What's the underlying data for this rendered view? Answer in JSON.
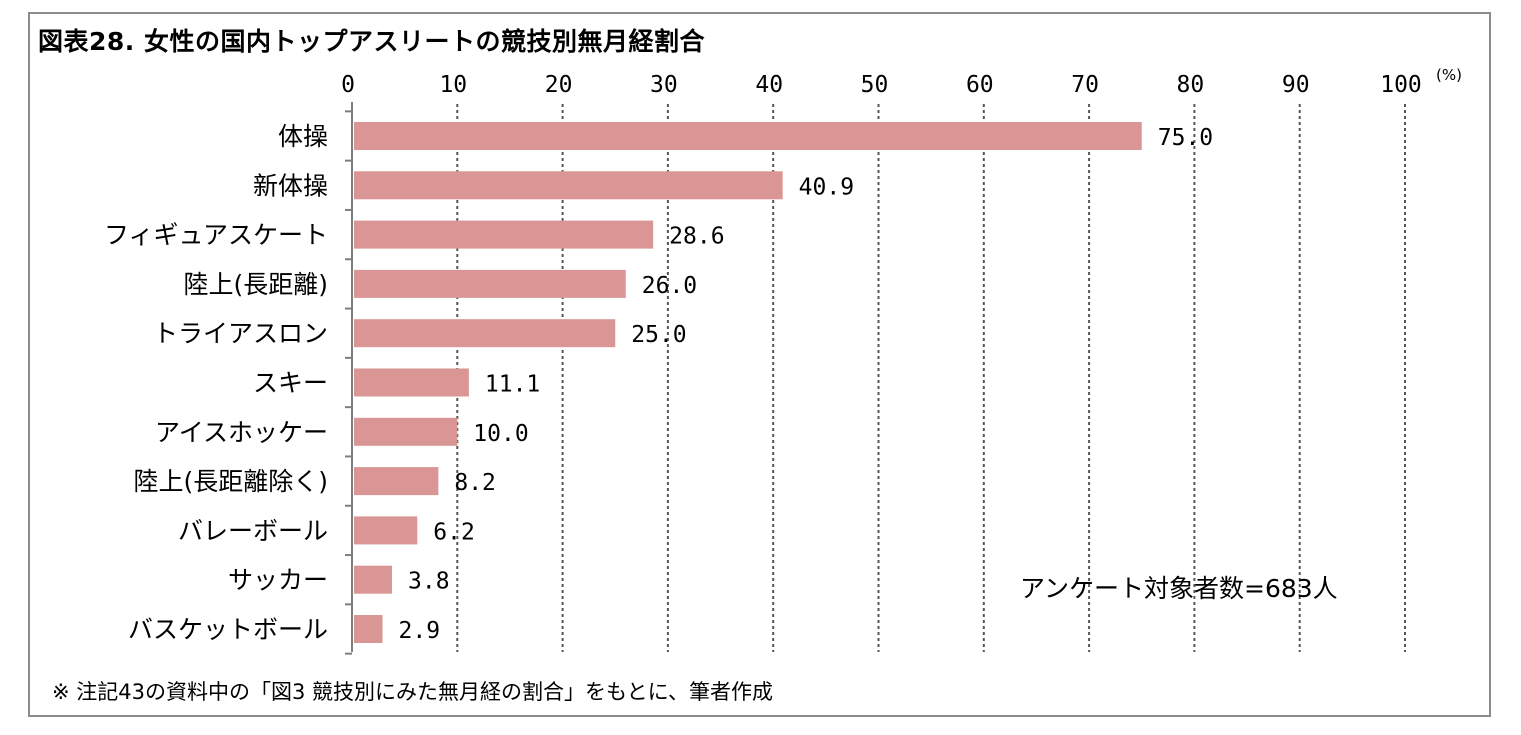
{
  "title": "図表28. 女性の国内トップアスリートの競技別無月経割合",
  "note": "※ 注記43の資料中の「図3 競技別にみた無月経の割合」をもとに、筆者作成",
  "annotation": "アンケート対象者数=683人",
  "colors": {
    "bar": "#d99694",
    "grid": "#555555",
    "frame": "#8c8c8c"
  },
  "chart_data": {
    "type": "bar",
    "orientation": "horizontal",
    "title": "図表28. 女性の国内トップアスリートの競技別無月経割合",
    "unit": "(%)",
    "xlim": [
      0,
      100
    ],
    "ticks": [
      0,
      10,
      20,
      30,
      40,
      50,
      60,
      70,
      80,
      90,
      100
    ],
    "tick_labels": [
      "0",
      "10",
      "20",
      "30",
      "40",
      "50",
      "60",
      "70",
      "80",
      "90",
      "100"
    ],
    "grid": true,
    "categories": [
      "体操",
      "新体操",
      "フィギュアスケート",
      "陸上(長距離)",
      "トライアスロン",
      "スキー",
      "アイスホッケー",
      "陸上(長距離除く)",
      "バレーボール",
      "サッカー",
      "バスケットボール"
    ],
    "values": [
      75.0,
      40.9,
      28.6,
      26.0,
      25.0,
      11.1,
      10.0,
      8.2,
      6.2,
      3.8,
      2.9
    ],
    "value_labels": [
      "75.0",
      "40.9",
      "28.6",
      "26.0",
      "25.0",
      "11.1",
      "10.0",
      "8.2",
      "6.2",
      "3.8",
      "2.9"
    ]
  }
}
